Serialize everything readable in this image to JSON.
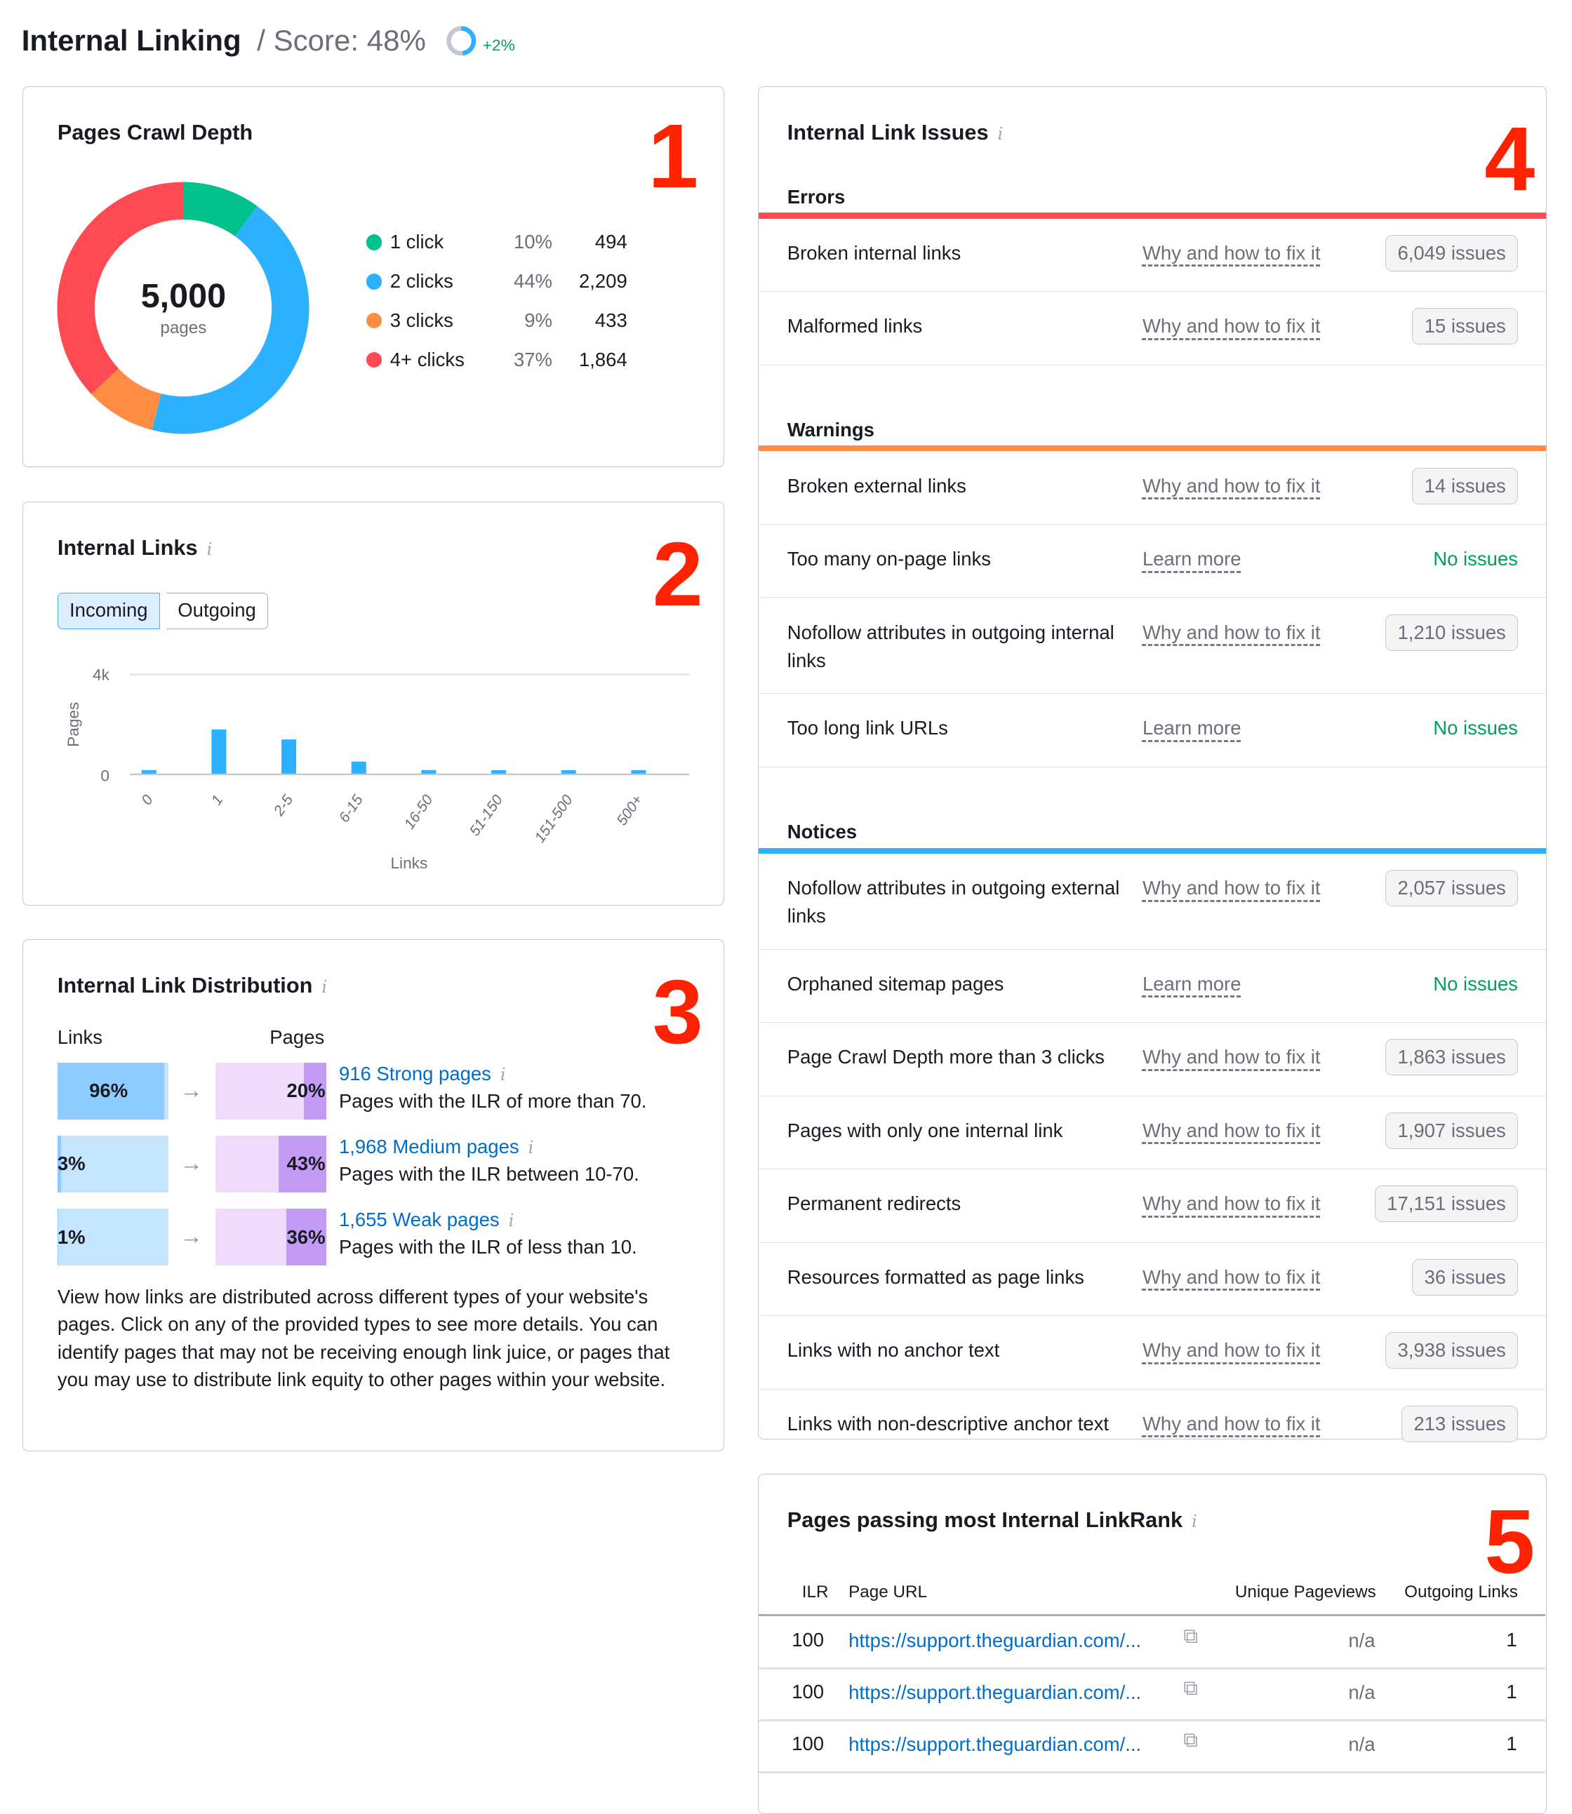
{
  "header": {
    "title": "Internal Linking",
    "score": "/ Score: 48%",
    "score_value": 48,
    "delta": "+2%"
  },
  "crawl_depth": {
    "title": "Pages Crawl Depth",
    "number_badge": "1",
    "total": "5,000",
    "total_label": "pages",
    "items": [
      {
        "label": "1 click",
        "pct": "10%",
        "count": "494",
        "color": "#00c08b",
        "share": 10
      },
      {
        "label": "2 clicks",
        "pct": "44%",
        "count": "2,209",
        "color": "#2bb1ff",
        "share": 44
      },
      {
        "label": "3 clicks",
        "pct": "9%",
        "count": "433",
        "color": "#ff8c43",
        "share": 9
      },
      {
        "label": "4+ clicks",
        "pct": "37%",
        "count": "1,864",
        "color": "#ff4953",
        "share": 37
      }
    ]
  },
  "internal_links": {
    "title": "Internal Links",
    "number_badge": "2",
    "tabs": [
      {
        "label": "Incoming",
        "active": true
      },
      {
        "label": "Outgoing",
        "active": false
      }
    ]
  },
  "chart_data": {
    "type": "bar",
    "categories": [
      "0",
      "1",
      "2-5",
      "6-15",
      "16-50",
      "51-150",
      "151-500",
      "500+"
    ],
    "values": [
      170,
      1800,
      1400,
      510,
      170,
      170,
      170,
      170
    ],
    "xlabel": "Links",
    "ylabel": "Pages",
    "yticks": [
      "0",
      "4k"
    ],
    "ylim": [
      0,
      4000
    ],
    "color": "#2bb1ff",
    "grid": true
  },
  "distribution": {
    "title": "Internal Link Distribution",
    "number_badge": "3",
    "col_links": "Links",
    "col_pages": "Pages",
    "rows": [
      {
        "links_pct": "96%",
        "links_share": 96,
        "pages_pct": "20%",
        "pages_share": 20,
        "link": "916 Strong pages",
        "desc": "Pages with the ILR of more than 70."
      },
      {
        "links_pct": "3%",
        "links_share": 3,
        "pages_pct": "43%",
        "pages_share": 43,
        "link": "1,968 Medium pages",
        "desc": "Pages with the ILR between 10-70."
      },
      {
        "links_pct": "1%",
        "links_share": 1,
        "pages_pct": "36%",
        "pages_share": 36,
        "link": "1,655 Weak pages",
        "desc": "Pages with the ILR of less than 10."
      }
    ],
    "description": "View how links are distributed across different types of your website's pages. Click on any of the provided types to see more details. You can identify pages that may not be receiving enough link juice, or pages that you may use to distribute link equity to other pages within your website."
  },
  "issues": {
    "title": "Internal Link Issues",
    "number_badge": "4",
    "sections": [
      {
        "title": "Errors",
        "color": "#ff4953",
        "rows": [
          {
            "name": "Broken internal links",
            "help": "Why and how to fix it",
            "value": "6,049 issues"
          },
          {
            "name": "Malformed links",
            "help": "Why and how to fix it",
            "value": "15 issues"
          }
        ]
      },
      {
        "title": "Warnings",
        "color": "#ff8c43",
        "rows": [
          {
            "name": "Broken external links",
            "help": "Why and how to fix it",
            "value": "14 issues"
          },
          {
            "name": "Too many on-page links",
            "help": "Learn more",
            "value": "No issues"
          },
          {
            "name": "Nofollow attributes in outgoing internal links",
            "help": "Why and how to fix it",
            "value": "1,210 issues"
          },
          {
            "name": "Too long link URLs",
            "help": "Learn more",
            "value": "No issues"
          }
        ]
      },
      {
        "title": "Notices",
        "color": "#2bb1ff",
        "rows": [
          {
            "name": "Nofollow attributes in outgoing external links",
            "help": "Why and how to fix it",
            "value": "2,057 issues"
          },
          {
            "name": "Orphaned sitemap pages",
            "help": "Learn more",
            "value": "No issues"
          },
          {
            "name": "Page Crawl Depth more than 3 clicks",
            "help": "Why and how to fix it",
            "value": "1,863 issues"
          },
          {
            "name": "Pages with only one internal link",
            "help": "Why and how to fix it",
            "value": "1,907 issues"
          },
          {
            "name": "Permanent redirects",
            "help": "Why and how to fix it",
            "value": "17,151 issues"
          },
          {
            "name": "Resources formatted as page links",
            "help": "Why and how to fix it",
            "value": "36 issues"
          },
          {
            "name": "Links with no anchor text",
            "help": "Why and how to fix it",
            "value": "3,938 issues"
          },
          {
            "name": "Links with non-descriptive anchor text",
            "help": "Why and how to fix it",
            "value": "213 issues"
          }
        ]
      }
    ]
  },
  "linkrank": {
    "title": "Pages passing most Internal LinkRank",
    "number_badge": "5",
    "columns": [
      "ILR",
      "Page URL",
      "Unique Pageviews",
      "Outgoing Links"
    ],
    "rows": [
      {
        "ilr": "100",
        "url": "https://support.theguardian.com/...",
        "pageviews": "n/a",
        "outgoing": "1"
      },
      {
        "ilr": "100",
        "url": "https://support.theguardian.com/...",
        "pageviews": "n/a",
        "outgoing": "1"
      },
      {
        "ilr": "100",
        "url": "https://support.theguardian.com/...",
        "pageviews": "n/a",
        "outgoing": "1"
      }
    ]
  }
}
